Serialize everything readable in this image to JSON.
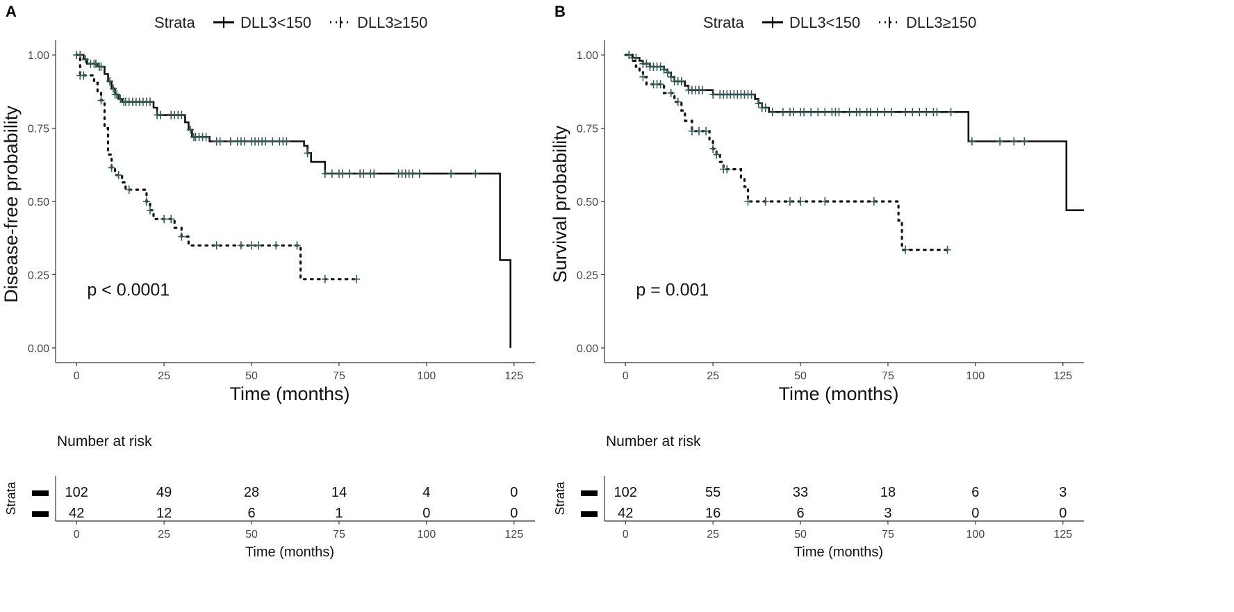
{
  "chart_data": [
    {
      "type": "line",
      "panel_label": "A",
      "legend_title": "Strata",
      "legend_position": "top",
      "ylabel": "Disease-free probability",
      "xlabel": "Time (months)",
      "xlim": [
        -6,
        131
      ],
      "ylim": [
        -0.05,
        1.05
      ],
      "x_ticks": [
        "0",
        "25",
        "50",
        "75",
        "100",
        "125"
      ],
      "x_tick_values": [
        0,
        25,
        50,
        75,
        100,
        125
      ],
      "y_ticks": [
        "0.00",
        "0.25",
        "0.50",
        "0.75",
        "1.00"
      ],
      "y_tick_values": [
        0,
        0.25,
        0.5,
        0.75,
        1.0
      ],
      "annotation": "p < 0.0001",
      "annotation_at": [
        3,
        0.2
      ],
      "series": [
        {
          "name": "DLL3<150",
          "style": "solid",
          "steps": [
            [
              0,
              1.0
            ],
            [
              2,
              0.985
            ],
            [
              3,
              0.97
            ],
            [
              6,
              0.96
            ],
            [
              8,
              0.935
            ],
            [
              9,
              0.91
            ],
            [
              10,
              0.885
            ],
            [
              11,
              0.865
            ],
            [
              12,
              0.85
            ],
            [
              13,
              0.84
            ],
            [
              22,
              0.82
            ],
            [
              23,
              0.795
            ],
            [
              31,
              0.77
            ],
            [
              32,
              0.745
            ],
            [
              33,
              0.72
            ],
            [
              38,
              0.705
            ],
            [
              65,
              0.69
            ],
            [
              66,
              0.665
            ],
            [
              67,
              0.635
            ],
            [
              71,
              0.595
            ],
            [
              121,
              0.3
            ],
            [
              124,
              0.0
            ]
          ],
          "censor_x": [
            1,
            2.5,
            4,
            5,
            5.5,
            6.5,
            7,
            9.5,
            10.5,
            11,
            11.5,
            12.5,
            13.5,
            14,
            15,
            16,
            17,
            18,
            19,
            20,
            21,
            23,
            24,
            27,
            28,
            29,
            30,
            32.5,
            33.5,
            34,
            35,
            36,
            37,
            40,
            41,
            44,
            46,
            47,
            48,
            50,
            51,
            52,
            53,
            54,
            56,
            58,
            59,
            60,
            66,
            71,
            73,
            75,
            76,
            78,
            81,
            82,
            84,
            85,
            92,
            93,
            94,
            95,
            96,
            98,
            107,
            114
          ]
        },
        {
          "name": "DLL3≥150",
          "style": "dotted",
          "steps": [
            [
              0,
              1.0
            ],
            [
              1,
              0.93
            ],
            [
              5,
              0.905
            ],
            [
              6,
              0.875
            ],
            [
              7,
              0.845
            ],
            [
              8,
              0.75
            ],
            [
              9,
              0.66
            ],
            [
              10,
              0.615
            ],
            [
              11,
              0.59
            ],
            [
              13,
              0.565
            ],
            [
              14,
              0.54
            ],
            [
              20,
              0.5
            ],
            [
              21,
              0.47
            ],
            [
              22,
              0.44
            ],
            [
              28,
              0.41
            ],
            [
              30,
              0.38
            ],
            [
              32,
              0.35
            ],
            [
              64,
              0.235
            ],
            [
              80,
              0.235
            ]
          ],
          "censor_x": [
            0,
            1,
            2,
            7,
            10,
            12,
            15,
            20,
            21,
            25,
            27,
            30,
            40,
            47,
            50,
            52,
            57,
            63,
            71,
            80
          ]
        }
      ],
      "risk_table": {
        "title": "Number at risk",
        "axis_label": "Strata",
        "xlabel": "Time (months)",
        "times": [
          "0",
          "25",
          "50",
          "75",
          "100",
          "125"
        ],
        "rows": [
          {
            "name": "DLL3<150",
            "values": [
              "102",
              "49",
              "28",
              "14",
              "4",
              "0"
            ]
          },
          {
            "name": "DLL3≥150",
            "values": [
              "42",
              "12",
              "6",
              "1",
              "0",
              "0"
            ]
          }
        ]
      }
    },
    {
      "type": "line",
      "panel_label": "B",
      "legend_title": "Strata",
      "legend_position": "top",
      "ylabel": "Survival probability",
      "xlabel": "Time (months)",
      "xlim": [
        -6,
        131
      ],
      "ylim": [
        -0.05,
        1.05
      ],
      "x_ticks": [
        "0",
        "25",
        "50",
        "75",
        "100",
        "125"
      ],
      "x_tick_values": [
        0,
        25,
        50,
        75,
        100,
        125
      ],
      "y_ticks": [
        "0.00",
        "0.25",
        "0.50",
        "0.75",
        "1.00"
      ],
      "y_tick_values": [
        0,
        0.25,
        0.5,
        0.75,
        1.0
      ],
      "annotation": "p = 0.001",
      "annotation_at": [
        3,
        0.2
      ],
      "series": [
        {
          "name": "DLL3<150",
          "style": "solid",
          "steps": [
            [
              0,
              1.0
            ],
            [
              2,
              0.99
            ],
            [
              4,
              0.98
            ],
            [
              5,
              0.97
            ],
            [
              7,
              0.96
            ],
            [
              11,
              0.95
            ],
            [
              12,
              0.94
            ],
            [
              13,
              0.925
            ],
            [
              14,
              0.91
            ],
            [
              17,
              0.895
            ],
            [
              18,
              0.88
            ],
            [
              25,
              0.865
            ],
            [
              37,
              0.85
            ],
            [
              38,
              0.835
            ],
            [
              39,
              0.82
            ],
            [
              41,
              0.805
            ],
            [
              98,
              0.705
            ],
            [
              126,
              0.47
            ],
            [
              131,
              0.47
            ]
          ],
          "censor_x": [
            1,
            2,
            3,
            5,
            6,
            7,
            8,
            9,
            10,
            11,
            12,
            13,
            14,
            15,
            16,
            18,
            19,
            20,
            21,
            22,
            25,
            27,
            28,
            29,
            30,
            31,
            32,
            33,
            34,
            35,
            36,
            38,
            39,
            40,
            42,
            45,
            47,
            48,
            50,
            51,
            53,
            55,
            57,
            59,
            60,
            61,
            64,
            66,
            67,
            69,
            70,
            72,
            74,
            76,
            80,
            82,
            84,
            86,
            88,
            89,
            93,
            99,
            107,
            111,
            114
          ]
        },
        {
          "name": "DLL3≥150",
          "style": "dotted",
          "steps": [
            [
              0,
              1.0
            ],
            [
              2,
              0.98
            ],
            [
              3,
              0.96
            ],
            [
              4,
              0.945
            ],
            [
              5,
              0.925
            ],
            [
              6,
              0.9
            ],
            [
              11,
              0.87
            ],
            [
              14,
              0.84
            ],
            [
              16,
              0.81
            ],
            [
              17,
              0.775
            ],
            [
              19,
              0.74
            ],
            [
              24,
              0.71
            ],
            [
              25,
              0.68
            ],
            [
              26,
              0.66
            ],
            [
              27,
              0.635
            ],
            [
              28,
              0.61
            ],
            [
              33,
              0.58
            ],
            [
              34,
              0.55
            ],
            [
              35,
              0.5
            ],
            [
              78,
              0.435
            ],
            [
              79,
              0.335
            ],
            [
              92,
              0.335
            ]
          ],
          "censor_x": [
            1,
            5,
            8,
            9,
            10,
            13,
            15,
            19,
            21,
            23,
            25,
            26,
            28,
            29,
            35,
            40,
            47,
            50,
            57,
            71,
            80,
            92
          ]
        }
      ],
      "risk_table": {
        "title": "Number at risk",
        "axis_label": "Strata",
        "xlabel": "Time (months)",
        "times": [
          "0",
          "25",
          "50",
          "75",
          "100",
          "125"
        ],
        "rows": [
          {
            "name": "DLL3<150",
            "values": [
              "102",
              "55",
              "33",
              "18",
              "6",
              "3"
            ]
          },
          {
            "name": "DLL3≥150",
            "values": [
              "42",
              "16",
              "6",
              "3",
              "0",
              "0"
            ]
          }
        ]
      }
    }
  ],
  "colors": {
    "line": "#111111",
    "censor_mark": "#2f5a52",
    "axis": "#333333",
    "text": "#222222"
  }
}
